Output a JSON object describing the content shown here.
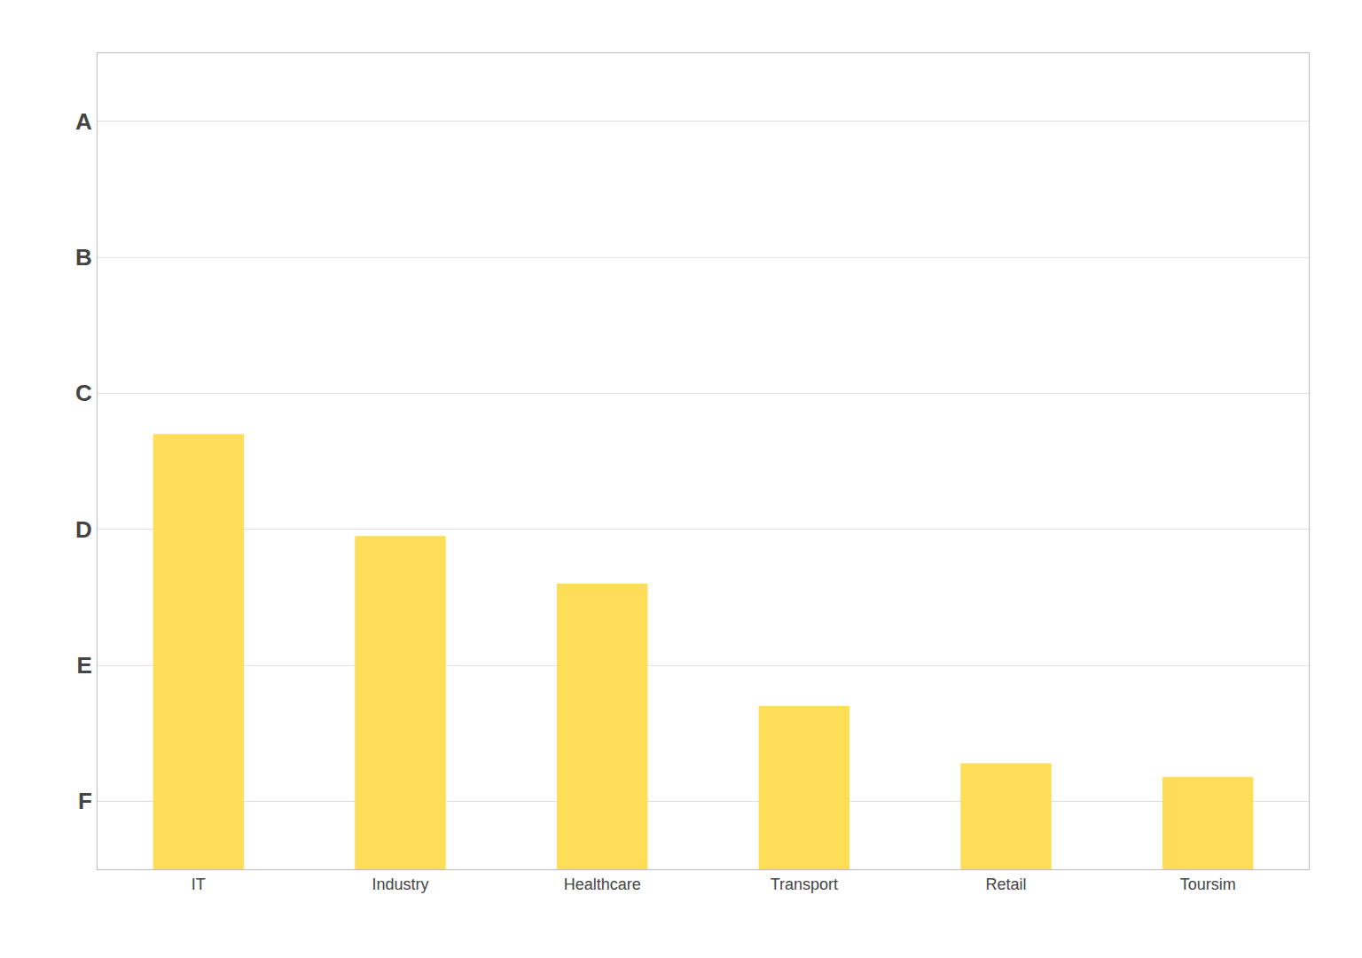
{
  "chart_data": {
    "type": "bar",
    "categories": [
      "IT",
      "Industry",
      "Healthcare",
      "Transport",
      "Retail",
      "Toursim"
    ],
    "values": [
      3.3,
      4.05,
      4.4,
      5.3,
      5.72,
      5.82
    ],
    "color": "#FEDD57",
    "ylim": [
      6.5,
      0.5
    ],
    "yticks": [
      {
        "value": 1,
        "label": "A"
      },
      {
        "value": 2,
        "label": "B"
      },
      {
        "value": 3,
        "label": "C"
      },
      {
        "value": 4,
        "label": "D"
      },
      {
        "value": 5,
        "label": "E"
      },
      {
        "value": 6,
        "label": "F"
      }
    ],
    "grid": true
  }
}
